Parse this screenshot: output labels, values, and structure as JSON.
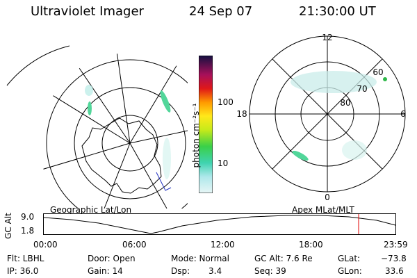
{
  "header": {
    "instrument": "Ultraviolet Imager",
    "date": "24 Sep 07",
    "time": "21:30:00 UT"
  },
  "colorbar": {
    "unit_label": "photon cm⁻²s⁻¹",
    "ticks": [
      "100",
      "10"
    ]
  },
  "polar_plot": {
    "mlt_labels": [
      "12",
      "18",
      "6",
      "0"
    ],
    "lat_labels": [
      "60",
      "70",
      "80"
    ]
  },
  "altitude_panel": {
    "y_title": "GC Alt",
    "y_ticks": [
      "9.0",
      "1.8"
    ],
    "left_caption": "Geographic Lat/Lon",
    "right_caption": "Apex MLat/MLT",
    "time_ticks": [
      "00:00",
      "06:00",
      "12:00",
      "18:00",
      "23:59"
    ],
    "colors": {
      "curve": "#000000",
      "marker": "#e00000"
    }
  },
  "status": {
    "filter": "Flt: LBHL",
    "ip": "IP: 36.0",
    "door": "Door: Open",
    "gain": "Gain: 14",
    "mode": "Mode: Normal",
    "dsp_label": "Dsp:",
    "dsp_value": "3.4",
    "gc_alt": "GC Alt: 7.6 Re",
    "seq": "Seq: 39",
    "glat_label": "GLat:",
    "glat_value": "−73.8",
    "glon_label": "GLon:",
    "glon_value": "33.6"
  }
}
